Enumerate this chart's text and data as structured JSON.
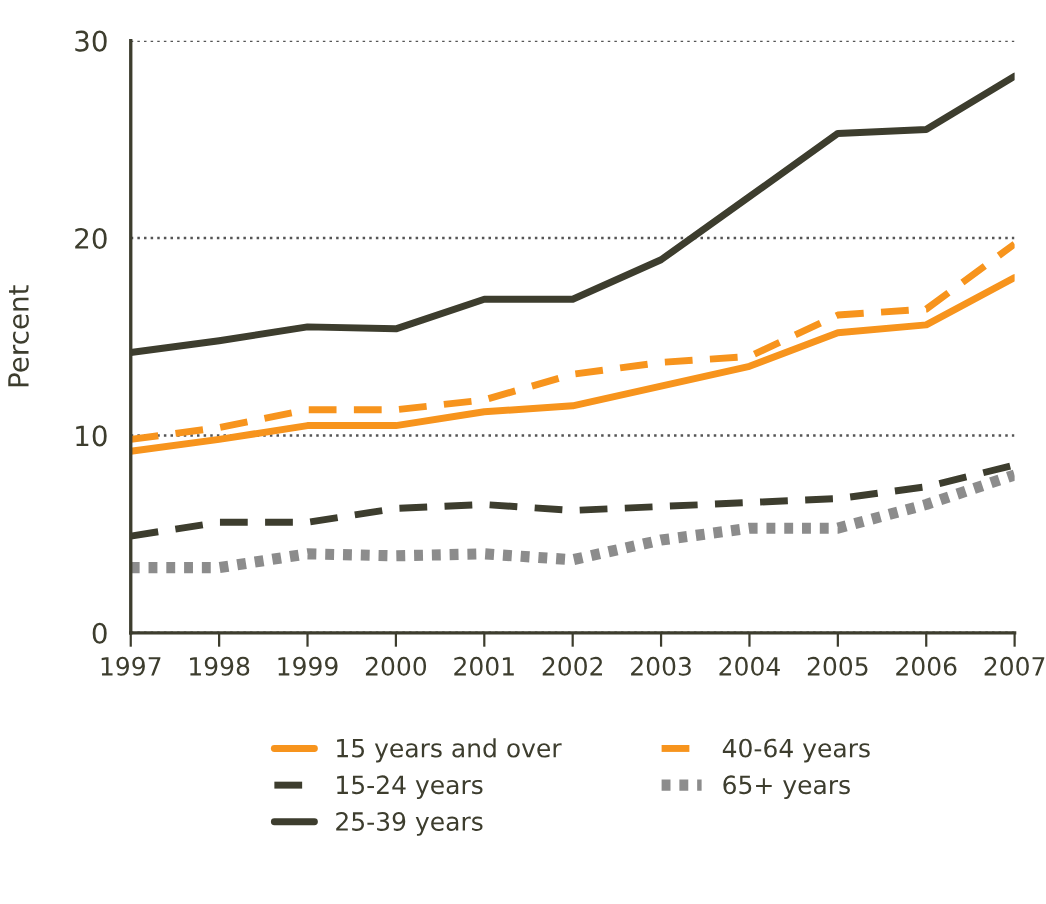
{
  "chart_data": {
    "type": "line",
    "ylabel": "Percent",
    "x": [
      1997,
      1998,
      1999,
      2000,
      2001,
      2002,
      2003,
      2004,
      2005,
      2006,
      2007
    ],
    "xlim": [
      1997,
      2007
    ],
    "xticks": [
      1997,
      1998,
      1999,
      2000,
      2001,
      2002,
      2003,
      2004,
      2005,
      2006,
      2007
    ],
    "ylim": [
      0,
      30
    ],
    "yticks": [
      0,
      10,
      20,
      30
    ],
    "grid": "y",
    "legend": "bottom",
    "marker": "none",
    "series": [
      {
        "name": "15 years and over",
        "color": "#f7941d",
        "line_style": "solid",
        "values": [
          9.2,
          9.8,
          10.5,
          10.5,
          11.2,
          11.5,
          12.5,
          13.5,
          15.2,
          15.6,
          18.0
        ]
      },
      {
        "name": "40-64 years",
        "color": "#f7941d",
        "line_style": "dashed",
        "values": [
          9.8,
          10.4,
          11.3,
          11.3,
          11.8,
          13.1,
          13.7,
          14.0,
          16.1,
          16.4,
          19.7
        ]
      },
      {
        "name": "15-24 years",
        "color": "#3d3d2e",
        "line_style": "dashed",
        "values": [
          4.9,
          5.6,
          5.6,
          6.3,
          6.5,
          6.2,
          6.4,
          6.6,
          6.8,
          7.4,
          8.5
        ]
      },
      {
        "name": "65+ years",
        "color": "#8c8c8c",
        "line_style": "dotted",
        "values": [
          3.3,
          3.3,
          4.0,
          3.9,
          4.0,
          3.7,
          4.7,
          5.3,
          5.3,
          6.5,
          8.0
        ]
      },
      {
        "name": "25-39 years",
        "color": "#3d3d2e",
        "line_style": "solid",
        "values": [
          14.2,
          14.8,
          15.5,
          15.4,
          16.9,
          16.9,
          18.9,
          22.1,
          25.3,
          25.5,
          28.2
        ]
      }
    ]
  }
}
